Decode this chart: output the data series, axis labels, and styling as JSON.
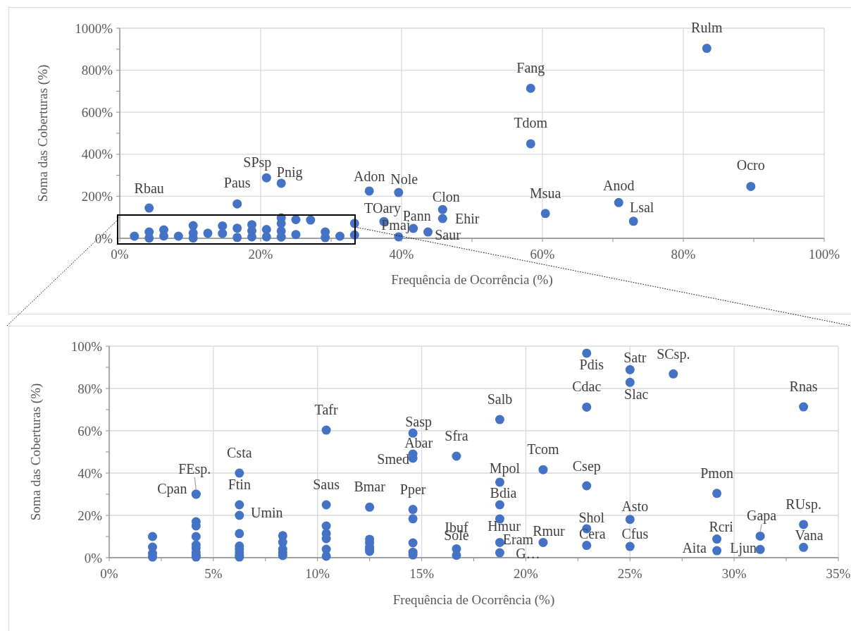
{
  "chart_data": [
    {
      "type": "scatter",
      "xlabel": "Frequência de Ocorrência (%)",
      "ylabel": "Soma das Coberturas (%)",
      "marker": "circle",
      "grid": true,
      "xlim": [
        0,
        100
      ],
      "ylim": [
        0,
        1000
      ],
      "xticks": [
        {
          "value": 0,
          "label": "0%"
        },
        {
          "value": 10,
          "label": null
        },
        {
          "value": 20,
          "label": "20%"
        },
        {
          "value": 30,
          "label": null
        },
        {
          "value": 40,
          "label": "40%"
        },
        {
          "value": 50,
          "label": null
        },
        {
          "value": 60,
          "label": "60%"
        },
        {
          "value": 70,
          "label": null
        },
        {
          "value": 80,
          "label": "80%"
        },
        {
          "value": 90,
          "label": null
        },
        {
          "value": 100,
          "label": "100%"
        }
      ],
      "yticks": [
        {
          "value": 0,
          "label": "0%"
        },
        {
          "value": 100,
          "label": null
        },
        {
          "value": 200,
          "label": "200%"
        },
        {
          "value": 300,
          "label": null
        },
        {
          "value": 400,
          "label": "400%"
        },
        {
          "value": 500,
          "label": null
        },
        {
          "value": 600,
          "label": "600%"
        },
        {
          "value": 700,
          "label": null
        },
        {
          "value": 800,
          "label": "800%"
        },
        {
          "value": 900,
          "label": null
        },
        {
          "value": 1000,
          "label": "1000%"
        }
      ],
      "series": [
        {
          "color": "#4472c4",
          "x": [
            2.08,
            4.17,
            4.17,
            6.25,
            6.25,
            8.33,
            10.42,
            10.42,
            10.42,
            12.5,
            14.58,
            14.58,
            16.67,
            16.67,
            18.75,
            18.75,
            18.75,
            20.83,
            20.83,
            22.92,
            22.92,
            22.92,
            22.92,
            25,
            25,
            27.08,
            29.17,
            29.17,
            31.25,
            33.33,
            33.33,
            4.17,
            16.67,
            20.83,
            22.92,
            35.42,
            39.58,
            45.83,
            45.83,
            37.5,
            41.67,
            39.58,
            43.75,
            60.42,
            58.33,
            58.33,
            70.83,
            72.92,
            83.33,
            89.58
          ],
          "values": [
            10,
            30,
            1,
            40,
            11,
            10,
            60,
            25,
            1,
            24,
            59,
            23,
            48,
            4,
            65,
            36,
            7,
            42,
            7,
            97,
            71,
            34,
            6,
            89,
            18,
            87,
            30,
            3,
            10,
            71,
            16,
            144,
            164,
            288,
            262,
            225,
            218,
            137,
            94,
            80,
            47,
            7,
            30,
            118,
            714,
            450,
            170,
            81,
            904,
            247
          ]
        }
      ],
      "annotations": [
        {
          "text": "Rbau",
          "x": 4.17,
          "y": 144
        },
        {
          "text": "Paus",
          "x": 16.67,
          "y": 164
        },
        {
          "text": "SPsp",
          "x": 20.83,
          "y": 288
        },
        {
          "text": "Pnig",
          "x": 22.92,
          "y": 262
        },
        {
          "text": "Adon",
          "x": 35.42,
          "y": 225
        },
        {
          "text": "Nole",
          "x": 39.58,
          "y": 218
        },
        {
          "text": "Clon",
          "x": 45.83,
          "y": 137
        },
        {
          "text": "Ehir",
          "x": 45.83,
          "y": 94
        },
        {
          "text": "TOary",
          "x": 37.5,
          "y": 80
        },
        {
          "text": "Pann",
          "x": 41.67,
          "y": 47
        },
        {
          "text": "Pmaj",
          "x": 39.58,
          "y": 7
        },
        {
          "text": "Saur",
          "x": 43.75,
          "y": 30
        },
        {
          "text": "Msua",
          "x": 60.42,
          "y": 118
        },
        {
          "text": "Fang",
          "x": 58.33,
          "y": 714
        },
        {
          "text": "Tdom",
          "x": 58.33,
          "y": 450
        },
        {
          "text": "Anod",
          "x": 70.83,
          "y": 170
        },
        {
          "text": "Lsal",
          "x": 72.92,
          "y": 81
        },
        {
          "text": "Rulm",
          "x": 83.33,
          "y": 904
        },
        {
          "text": "Ocro",
          "x": 89.58,
          "y": 247
        }
      ]
    },
    {
      "type": "scatter",
      "xlabel": "Frequência de Ocorrência (%)",
      "ylabel": "Soma das Coberturas (%)",
      "marker": "circle",
      "grid": true,
      "xlim": [
        0,
        35
      ],
      "ylim": [
        0,
        100
      ],
      "xticks": [
        {
          "value": 0,
          "label": "0%"
        },
        {
          "value": 2.5,
          "label": null
        },
        {
          "value": 5,
          "label": "5%"
        },
        {
          "value": 7.5,
          "label": null
        },
        {
          "value": 10,
          "label": "10%"
        },
        {
          "value": 12.5,
          "label": null
        },
        {
          "value": 15,
          "label": "15%"
        },
        {
          "value": 17.5,
          "label": null
        },
        {
          "value": 20,
          "label": "20%"
        },
        {
          "value": 22.5,
          "label": null
        },
        {
          "value": 25,
          "label": "25%"
        },
        {
          "value": 27.5,
          "label": null
        },
        {
          "value": 30,
          "label": "30%"
        },
        {
          "value": 32.5,
          "label": null
        },
        {
          "value": 35,
          "label": "35%"
        }
      ],
      "yticks": [
        {
          "value": 0,
          "label": "0%"
        },
        {
          "value": 10,
          "label": null
        },
        {
          "value": 20,
          "label": "20%"
        },
        {
          "value": 30,
          "label": null
        },
        {
          "value": 40,
          "label": "40%"
        },
        {
          "value": 50,
          "label": null
        },
        {
          "value": 60,
          "label": "60%"
        },
        {
          "value": 70,
          "label": null
        },
        {
          "value": 80,
          "label": "80%"
        },
        {
          "value": 90,
          "label": null
        },
        {
          "value": 100,
          "label": "100%"
        }
      ],
      "series": [
        {
          "color": "#4472c4",
          "x": [
            2.08,
            2.08,
            2.08,
            2.08,
            4.17,
            4.17,
            4.17,
            4.17,
            4.17,
            4.17,
            4.17,
            4.17,
            4.17,
            4.17,
            6.25,
            6.25,
            6.25,
            6.25,
            6.25,
            6.25,
            6.25,
            6.25,
            6.25,
            8.33,
            8.33,
            8.33,
            8.33,
            8.33,
            10.42,
            10.42,
            10.42,
            10.42,
            10.42,
            10.42,
            10.42,
            12.5,
            12.5,
            12.5,
            12.5,
            12.5,
            12.5,
            14.58,
            14.58,
            14.58,
            14.58,
            14.58,
            14.58,
            14.58,
            14.58,
            16.67,
            16.67,
            16.67,
            18.75,
            18.75,
            18.75,
            18.75,
            18.75,
            18.75,
            20.83,
            20.83,
            22.92,
            22.92,
            22.92,
            22.92,
            22.92,
            25,
            25,
            25,
            25,
            27.08,
            29.17,
            29.17,
            29.17,
            31.25,
            31.25,
            33.33,
            33.33,
            33.33
          ],
          "values": [
            10,
            5,
            2,
            0.3,
            30,
            30,
            17,
            15,
            10,
            6,
            4.5,
            2.5,
            1,
            0.3,
            40,
            25,
            20,
            11.4,
            5.5,
            4,
            2.5,
            1,
            0.3,
            10.4,
            7.3,
            4,
            2.5,
            1,
            60.3,
            25,
            15,
            11.4,
            9,
            4,
            0.7,
            23.9,
            8.7,
            7,
            5,
            4,
            3,
            58.9,
            49,
            47,
            22.8,
            18.4,
            7,
            2.6,
            1.3,
            48,
            4.2,
            1.1,
            65.3,
            35.7,
            25,
            18.3,
            7.2,
            2.3,
            41.6,
            7.2,
            96.7,
            71.2,
            34,
            13.7,
            5.8,
            88.9,
            82.9,
            18.1,
            5.3,
            86.9,
            30.4,
            8.8,
            3.3,
            10.2,
            3.9,
            71.3,
            15.7,
            4.9
          ]
        }
      ],
      "annotations": [
        {
          "text": "Cpan",
          "x": 4.17,
          "y": 30
        },
        {
          "text": "FEsp.",
          "x": 4.17,
          "y": 30
        },
        {
          "text": "Csta",
          "x": 6.25,
          "y": 40
        },
        {
          "text": "Ftin",
          "x": 6.25,
          "y": 25
        },
        {
          "text": "Umin",
          "x": 6.25,
          "y": 20
        },
        {
          "text": "Tafr",
          "x": 10.42,
          "y": 60.3
        },
        {
          "text": "Saus",
          "x": 10.42,
          "y": 25
        },
        {
          "text": "Bmar",
          "x": 12.5,
          "y": 23.9
        },
        {
          "text": "Sasp",
          "x": 14.58,
          "y": 58.9
        },
        {
          "text": "Abar",
          "x": 14.58,
          "y": 49
        },
        {
          "text": "Smed",
          "x": 14.58,
          "y": 47
        },
        {
          "text": "Pper",
          "x": 14.58,
          "y": 22.8
        },
        {
          "text": "Sfra",
          "x": 16.67,
          "y": 48
        },
        {
          "text": "Ibuf",
          "x": 16.67,
          "y": 4.2
        },
        {
          "text": "Sole",
          "x": 16.67,
          "y": 1.1
        },
        {
          "text": "Salb",
          "x": 18.75,
          "y": 65.3
        },
        {
          "text": "Mpol",
          "x": 18.75,
          "y": 35.7
        },
        {
          "text": "Bdia",
          "x": 18.75,
          "y": 25
        },
        {
          "text": "Hmur",
          "x": 18.75,
          "y": 18.3
        },
        {
          "text": "Eram",
          "x": 18.75,
          "y": 7.2
        },
        {
          "text": "G…",
          "x": 18.75,
          "y": 2.3
        },
        {
          "text": "Tcom",
          "x": 20.83,
          "y": 41.6
        },
        {
          "text": "Rmur",
          "x": 20.83,
          "y": 7.2
        },
        {
          "text": "Pdis",
          "x": 22.92,
          "y": 96.7
        },
        {
          "text": "Cdac",
          "x": 22.92,
          "y": 71.2
        },
        {
          "text": "Csep",
          "x": 22.92,
          "y": 34
        },
        {
          "text": "Shol",
          "x": 22.92,
          "y": 13.7
        },
        {
          "text": "Cera",
          "x": 22.92,
          "y": 5.8
        },
        {
          "text": "Satr",
          "x": 25,
          "y": 88.9
        },
        {
          "text": "Slac",
          "x": 25,
          "y": 82.9
        },
        {
          "text": "SCsp.",
          "x": 27.08,
          "y": 86.9
        },
        {
          "text": "Asto",
          "x": 25,
          "y": 18.1
        },
        {
          "text": "Cfus",
          "x": 25,
          "y": 5.3
        },
        {
          "text": "Pmon",
          "x": 29.17,
          "y": 30.4
        },
        {
          "text": "Rcri",
          "x": 29.17,
          "y": 8.8
        },
        {
          "text": "Aita",
          "x": 29.17,
          "y": 3.3
        },
        {
          "text": "Gapa",
          "x": 31.25,
          "y": 10.2
        },
        {
          "text": "Ljun",
          "x": 31.25,
          "y": 3.9
        },
        {
          "text": "Rnas",
          "x": 33.33,
          "y": 71.3
        },
        {
          "text": "RUsp.",
          "x": 33.33,
          "y": 15.7
        },
        {
          "text": "Vana",
          "x": 33.33,
          "y": 4.9
        }
      ]
    }
  ]
}
